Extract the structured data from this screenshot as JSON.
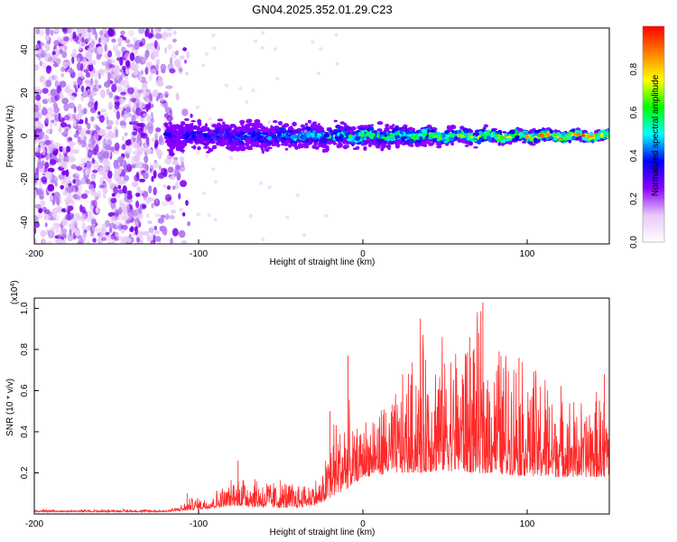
{
  "title": "GN04.2025.352.01.29.C23",
  "chart_data": [
    {
      "type": "heatmap",
      "name": "spectrogram",
      "xlabel": "Height of straight line (km)",
      "ylabel": "Frequency (Hz)",
      "xlim": [
        -200,
        150
      ],
      "ylim": [
        -50,
        50
      ],
      "xticks": [
        -200,
        -100,
        0,
        100
      ],
      "yticks": [
        -40,
        -20,
        0,
        20,
        40
      ],
      "colorbar": {
        "label": "Normalized spectral amplitude",
        "range": [
          0.0,
          1.0
        ],
        "ticks": [
          0.0,
          0.2,
          0.4,
          0.6,
          0.8
        ],
        "tick_labels": [
          "0.0",
          "0.2",
          "0.4",
          "0.6",
          "0.8"
        ],
        "colormap": [
          "#ffffff",
          "#e8c8f8",
          "#8a00ff",
          "#0000ff",
          "#00ffff",
          "#00ff00",
          "#ffff00",
          "#ff8000",
          "#ff0000"
        ]
      },
      "regions": [
        {
          "x_range": [
            -200,
            -105
          ],
          "freq_range": [
            -50,
            50
          ],
          "amplitude": 0.1,
          "description": "scattered low-amplitude noise"
        },
        {
          "x_range": [
            -120,
            150
          ],
          "freq_center": 0,
          "freq_halfwidth_start": 10,
          "freq_halfwidth_end": 3,
          "amplitude_start": 0.35,
          "amplitude_end": 0.95,
          "description": "narrow band near 0 Hz"
        }
      ]
    },
    {
      "type": "line",
      "name": "snr",
      "color": "#ff2a2a",
      "xlabel": "Height of straight line (km)",
      "ylabel": "SNR (10 * v/v)",
      "scale_label": "(x10",
      "scale_exponent": "4",
      "scale_close": ")",
      "xlim": [
        -200,
        150
      ],
      "ylim": [
        0,
        1.05
      ],
      "xticks": [
        -200,
        -100,
        0,
        100
      ],
      "yticks": [
        0.2,
        0.4,
        0.6,
        0.8,
        1.0
      ],
      "ytick_labels": [
        "0.2",
        "0.4",
        "0.6",
        "0.8",
        "1.0"
      ],
      "envelope": {
        "x": [
          -200,
          -120,
          -110,
          -105,
          -95,
          -80,
          -75,
          -60,
          -40,
          -25,
          -20,
          -10,
          -5,
          0,
          20,
          35,
          50,
          70,
          90,
          110,
          130,
          150
        ],
        "baseline": [
          0.01,
          0.01,
          0.015,
          0.02,
          0.025,
          0.04,
          0.04,
          0.03,
          0.03,
          0.05,
          0.08,
          0.12,
          0.15,
          0.18,
          0.2,
          0.2,
          0.21,
          0.2,
          0.19,
          0.18,
          0.18,
          0.18
        ],
        "peak": [
          0.025,
          0.025,
          0.05,
          0.09,
          0.1,
          0.18,
          0.26,
          0.2,
          0.18,
          0.2,
          0.5,
          0.62,
          0.45,
          0.5,
          0.65,
          0.95,
          0.92,
          1.03,
          0.9,
          0.75,
          0.6,
          0.68
        ]
      },
      "peaks": [
        {
          "x": -107,
          "y": 0.1
        },
        {
          "x": -76,
          "y": 0.26
        },
        {
          "x": -20,
          "y": 0.5
        },
        {
          "x": -9,
          "y": 0.77
        },
        {
          "x": 35,
          "y": 0.95
        },
        {
          "x": 65,
          "y": 0.86
        },
        {
          "x": 73,
          "y": 1.03
        },
        {
          "x": 95,
          "y": 0.76
        },
        {
          "x": 147,
          "y": 0.68
        }
      ]
    }
  ]
}
